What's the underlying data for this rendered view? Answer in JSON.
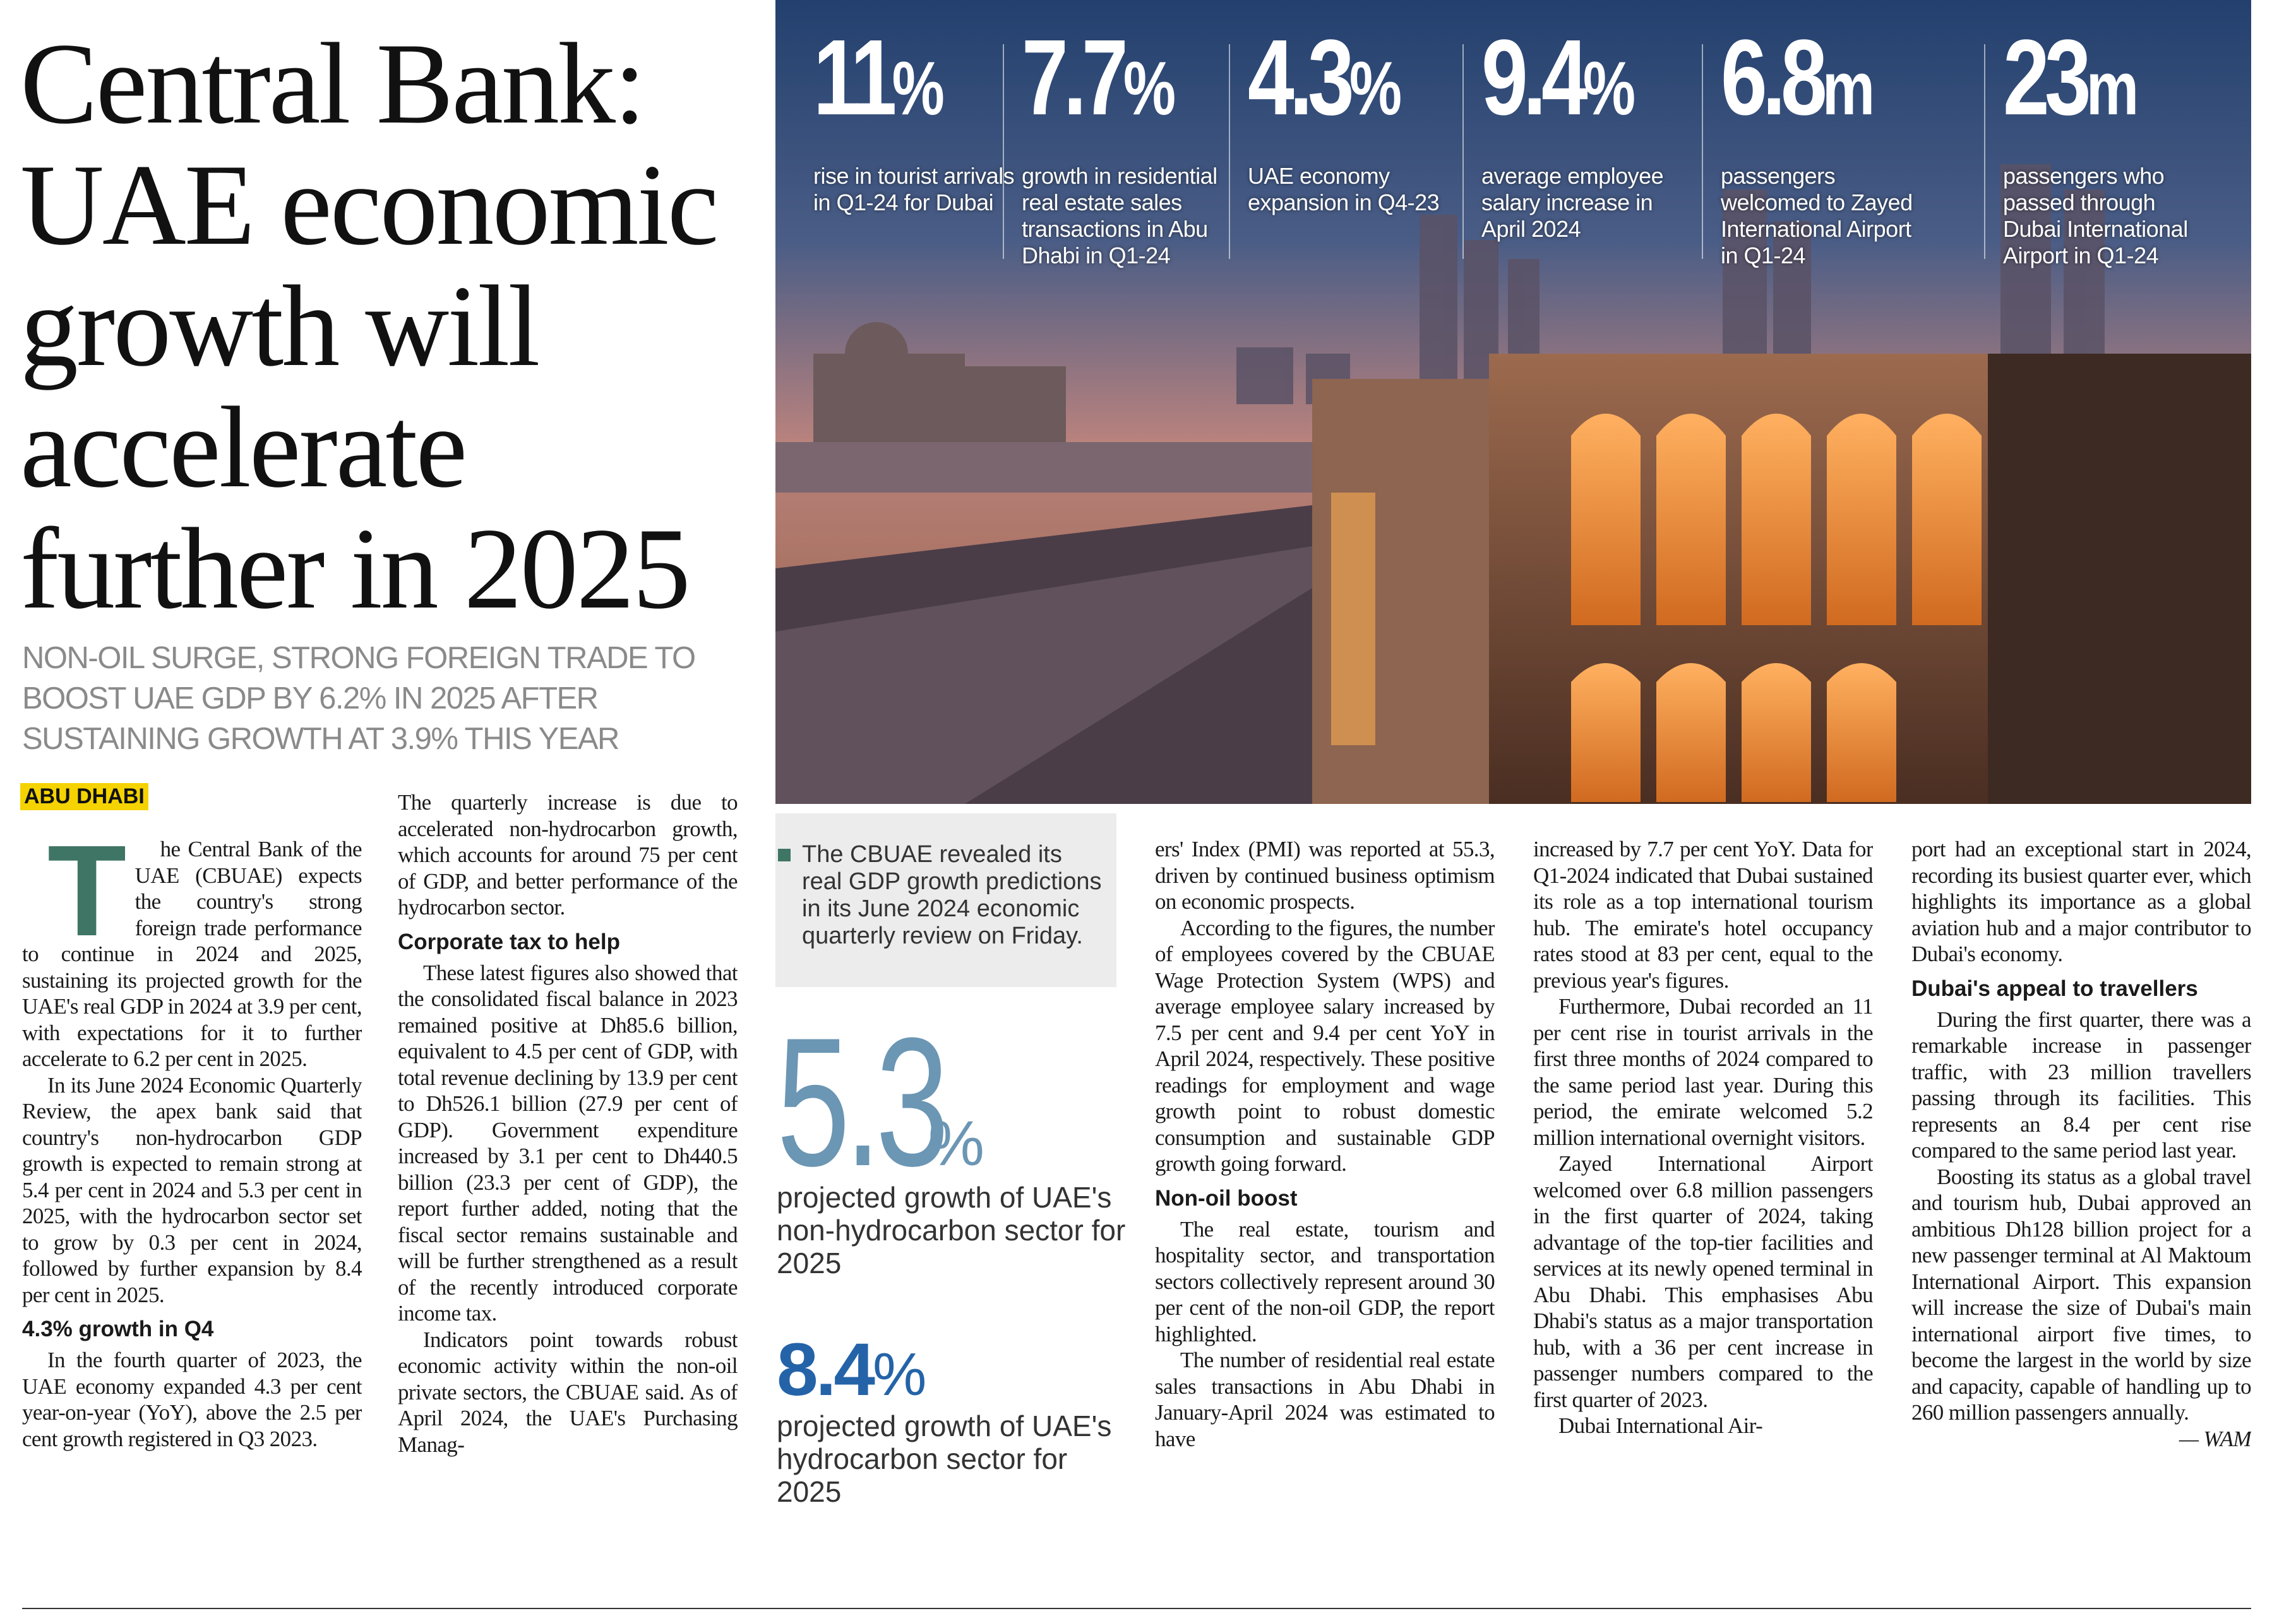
{
  "headline": "Central Bank: UAE economic growth will accelerate further in 2025",
  "subheadline": "NON-OIL SURGE, STRONG FOREIGN TRADE TO BOOST UAE GDP BY 6.2% IN 2025 AFTER SUSTAINING GROWTH AT 3.9% THIS YEAR",
  "dateline": "ABU DHABI",
  "stats": [
    {
      "figure": "11",
      "unit": "%",
      "label": "rise in tourist arrivals in Q1-24 for Dubai"
    },
    {
      "figure": "7.7",
      "unit": "%",
      "label": "growth in residential real estate sales transactions in Abu Dhabi in Q1-24"
    },
    {
      "figure": "4.3",
      "unit": "%",
      "label": "UAE economy expansion in Q4-23"
    },
    {
      "figure": "9.4",
      "unit": "%",
      "label": "average employee salary increase in April 2024"
    },
    {
      "figure": "6.8",
      "unit": "m",
      "label": "passengers welcomed to Zayed International Airport in Q1-24"
    },
    {
      "figure": "23",
      "unit": "m",
      "label": "passengers who passed through Dubai International Airport in Q1-24"
    }
  ],
  "caption": "The CBUAE revealed its real GDP growth predictions in its June 2024 economic quarterly review on Friday.",
  "highlights": [
    {
      "figure": "5.3",
      "unit": "%",
      "text": "projected growth of UAE's non-hydrocarbon sector for 2025"
    },
    {
      "figure": "8.4",
      "unit": "%",
      "text": "projected growth of UAE's hydrocarbon sector for 2025"
    }
  ],
  "columns": [
    [
      {
        "text": "The Central Bank of the UAE (CBUAE) expects the country's strong foreign trade performance to continue in 2024 and 2025, sustaining its projected growth for the UAE's real GDP in 2024 at 3.9 per cent, with expectations for it to further accelerate to 6.2 per cent in 2025."
      },
      {
        "text": "In its June 2024 Economic Quarterly Review, the apex bank said that country's non-hydrocarbon GDP growth is expected to remain strong at 5.4 per cent in 2024 and 5.3 per cent in 2025, with the hydrocarbon sector set to grow by 0.3 per cent in 2024, followed by further expansion by 8.4 per cent in 2025."
      },
      {
        "subhead": "4.3% growth in Q4"
      },
      {
        "text": "In the fourth quarter of 2023, the UAE economy expanded 4.3 per cent year-on-year (YoY), above the 2.5 per cent growth registered in Q3 2023."
      }
    ],
    [
      {
        "text": "The quarterly increase is due to accelerated non-hydrocarbon growth, which accounts for around 75 per cent of GDP, and better performance of the hydrocarbon sector."
      },
      {
        "subhead": "Corporate tax to help"
      },
      {
        "text": "These latest figures also showed that the consolidated fiscal balance in 2023 remained positive at Dh85.6 billion, equivalent to 4.5 per cent of GDP, with total revenue declining by 13.9 per cent to Dh526.1 billion (27.9 per cent of GDP). Government expenditure increased by 3.1 per cent to Dh440.5 billion (23.3 per cent of GDP), the report further added, noting that the fiscal sector remains sustainable and will be further strengthened as a result of the recently introduced corporate income tax."
      },
      {
        "text": "Indicators point towards robust economic activity within the non-oil private sectors, the CBUAE said. As of April 2024, the UAE's Purchasing Manag-"
      }
    ],
    [
      {
        "text": "ers' Index (PMI) was reported at 55.3, driven by continued business optimism on economic prospects."
      },
      {
        "text": "According to the figures, the number of employees covered by the CBUAE Wage Protection System (WPS) and average employee salary increased by 7.5 per cent and 9.4 per cent YoY in April 2024, respectively. These positive readings for employment and wage growth point to robust domestic consumption and sustainable GDP growth going forward."
      },
      {
        "subhead": "Non-oil boost"
      },
      {
        "text": "The real estate, tourism and hospitality sector, and transportation sectors collectively represent around 30 per cent of the non-oil GDP, the report highlighted."
      },
      {
        "text": "The number of residential real estate sales transactions in Abu Dhabi in January-April 2024 was estimated to have"
      }
    ],
    [
      {
        "text": "increased by 7.7 per cent YoY. Data for Q1-2024 indicated that Dubai sustained its role as a top international tourism hub. The emirate's hotel occupancy rates stood at 83 per cent, equal to the previous year's figures."
      },
      {
        "text": "Furthermore, Dubai recorded an 11 per cent rise in tourist arrivals in the first three months of 2024 compared to the same period last year. During this period, the emirate welcomed 5.2 million international overnight visitors."
      },
      {
        "text": "Zayed International Airport welcomed over 6.8 million passengers in the first quarter of 2024, taking advantage of the top-tier facilities and services at its newly opened terminal in Abu Dhabi. This emphasises Abu Dhabi's status as a major transportation hub, with a 36 per cent increase in passenger numbers compared to the first quarter of 2023."
      },
      {
        "text": "Dubai International Air-"
      }
    ],
    [
      {
        "text": "port had an exceptional start in 2024, recording its busiest quarter ever, which highlights its importance as a global aviation hub and a major contributor to Dubai's economy."
      },
      {
        "subhead": "Dubai's appeal to travellers"
      },
      {
        "text": "During the first quarter, there was a remarkable increase in passenger traffic, with 23 million travellers passing through its facilities. This represents an 8.4 per cent rise compared to the same period last year."
      },
      {
        "text": "Boosting its status as a global travel and tourism hub, Dubai approved an ambitious Dh128 billion project for a new passenger terminal at Al Maktoum International Airport. This expansion will increase the size of Dubai's main international airport five times, to become the largest in the world by size and capacity, capable of handling up to 260 million passengers annually.",
        "credit": "— WAM"
      }
    ]
  ]
}
